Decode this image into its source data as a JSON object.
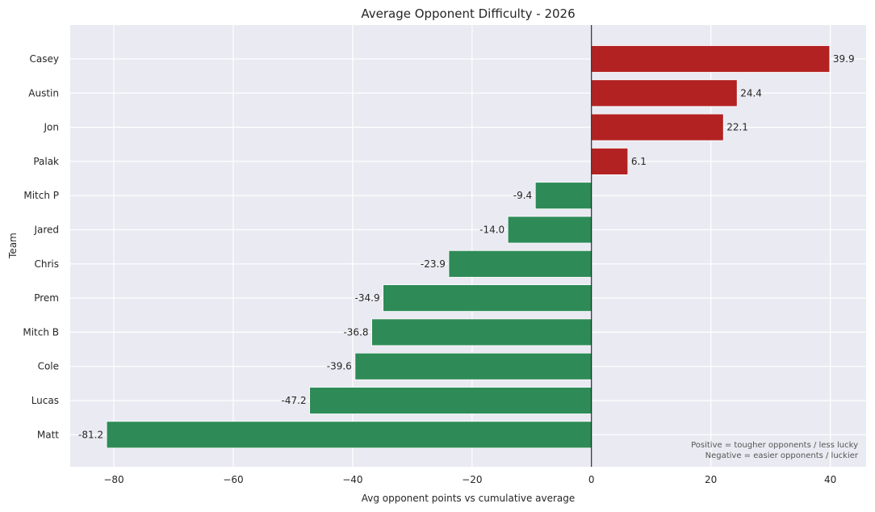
{
  "chart_data": {
    "type": "bar",
    "orientation": "horizontal",
    "title": "Average Opponent Difficulty - 2026",
    "xlabel": "Avg opponent points vs cumulative average",
    "ylabel": "Team",
    "categories": [
      "Casey",
      "Austin",
      "Jon",
      "Palak",
      "Mitch P",
      "Jared",
      "Chris",
      "Prem",
      "Mitch B",
      "Cole",
      "Lucas",
      "Matt"
    ],
    "values": [
      39.9,
      24.4,
      22.1,
      6.1,
      -9.4,
      -14.0,
      -23.9,
      -34.9,
      -36.8,
      -39.6,
      -47.2,
      -81.2
    ],
    "value_labels": [
      "39.9",
      "24.4",
      "22.1",
      "6.1",
      "-9.4",
      "-14.0",
      "-23.9",
      "-34.9",
      "-36.8",
      "-39.6",
      "-47.2",
      "-81.2"
    ],
    "xlim": [
      -87.3,
      46
    ],
    "xticks": [
      -80,
      -60,
      -40,
      -20,
      0,
      20,
      40
    ],
    "xtick_labels": [
      "−80",
      "−60",
      "−40",
      "−20",
      "0",
      "20",
      "40"
    ],
    "grid": true,
    "zero_line": true,
    "colors": {
      "positive": "#b22222",
      "negative": "#2e8b57",
      "background": "#eaeaf2",
      "grid": "#ffffff"
    },
    "annotations": [
      "Positive = tougher opponents / less lucky",
      "Negative = easier opponents / luckier"
    ]
  }
}
